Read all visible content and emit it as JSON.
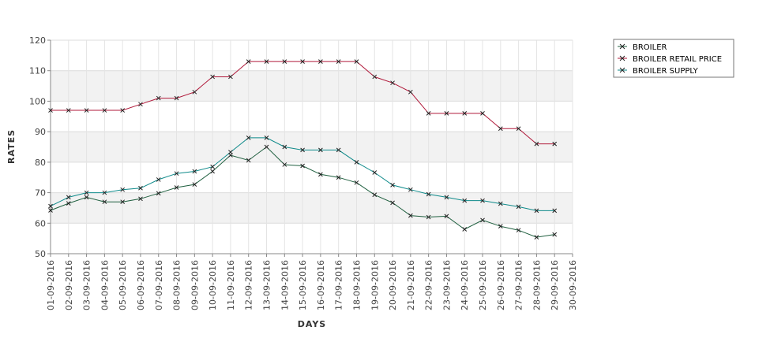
{
  "chart_data": {
    "type": "line",
    "title": "",
    "xlabel": "DAYS",
    "ylabel": "RATES",
    "ylim": [
      50,
      120
    ],
    "yticks": [
      50,
      60,
      70,
      80,
      90,
      100,
      110,
      120
    ],
    "grid": true,
    "legend_position": "top-right",
    "categories": [
      "01-09-2016",
      "02-09-2016",
      "03-09-2016",
      "04-09-2016",
      "05-09-2016",
      "06-09-2016",
      "07-09-2016",
      "08-09-2016",
      "09-09-2016",
      "10-09-2016",
      "11-09-2016",
      "12-09-2016",
      "13-09-2016",
      "14-09-2016",
      "15-09-2016",
      "16-09-2016",
      "17-09-2016",
      "18-09-2016",
      "19-09-2016",
      "20-09-2016",
      "21-09-2016",
      "22-09-2016",
      "23-09-2016",
      "24-09-2016",
      "25-09-2016",
      "26-09-2016",
      "27-09-2016",
      "28-09-2016",
      "29-09-2016",
      "30-09-2016"
    ],
    "series": [
      {
        "name": "BROILER",
        "color": "#1f5f3f",
        "values": [
          64.2,
          66.5,
          68.5,
          67,
          67,
          68,
          69.8,
          71.7,
          72.7,
          77,
          82.3,
          80.6,
          85,
          79.2,
          78.8,
          76,
          75,
          73.3,
          69.3,
          66.7,
          62.5,
          62,
          62.3,
          58,
          61,
          59,
          57.7,
          55.4,
          56.3,
          null
        ]
      },
      {
        "name": "BROILER RETAIL PRICE",
        "color": "#b0193a",
        "values": [
          97,
          97,
          97,
          97,
          97,
          99,
          101,
          101,
          103,
          108,
          108,
          113,
          113,
          113,
          113,
          113,
          113,
          113,
          108,
          106,
          103,
          96,
          96,
          96,
          96,
          91,
          91,
          86,
          86,
          null
        ]
      },
      {
        "name": "BROILER SUPPLY",
        "color": "#0e8a8a",
        "values": [
          65.6,
          68.5,
          70,
          70,
          71,
          71.5,
          74.3,
          76.3,
          77,
          78.5,
          83.3,
          88,
          88,
          85,
          84,
          84,
          84,
          80,
          76.6,
          72.5,
          71,
          69.5,
          68.5,
          67.4,
          67.4,
          66.4,
          65.4,
          64.1,
          64.1,
          null
        ]
      }
    ]
  }
}
